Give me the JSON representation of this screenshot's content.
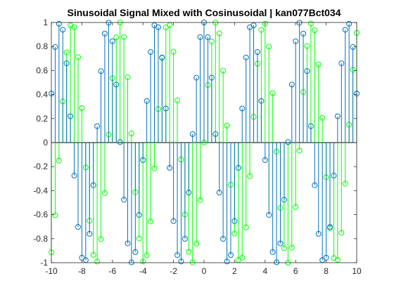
{
  "chart_data": {
    "type": "stem",
    "title": "Sinusoidal Signal Mixed with Cosinusoidal | kan077Bct034",
    "xlabel": "",
    "ylabel": "",
    "xlim": [
      -10,
      10
    ],
    "ylim": [
      -1,
      1
    ],
    "x_ticks": [
      -10,
      -8,
      -6,
      -4,
      -2,
      0,
      2,
      4,
      6,
      8,
      10
    ],
    "y_ticks": [
      -1,
      -0.8,
      -0.6,
      -0.4,
      -0.2,
      0,
      0.2,
      0.4,
      0.6,
      0.8,
      1
    ],
    "x_tick_labels": [
      "-10",
      "-8",
      "-6",
      "-4",
      "-2",
      "0",
      "2",
      "4",
      "6",
      "8",
      "10"
    ],
    "y_tick_labels": [
      "-1",
      "-0.8",
      "-0.6",
      "-0.4",
      "-0.2",
      "0",
      "0.2",
      "0.4",
      "0.6",
      "0.8",
      "1"
    ],
    "grid": false,
    "baseline": 0,
    "sample_x": {
      "start": -10,
      "end": 10,
      "step": 0.25
    },
    "series": [
      {
        "expression": "sin(2x)",
        "color": "#00ff00",
        "marker": "circle"
      },
      {
        "expression": "cos(2x)",
        "color": "#0072bd",
        "marker": "circle"
      }
    ]
  }
}
